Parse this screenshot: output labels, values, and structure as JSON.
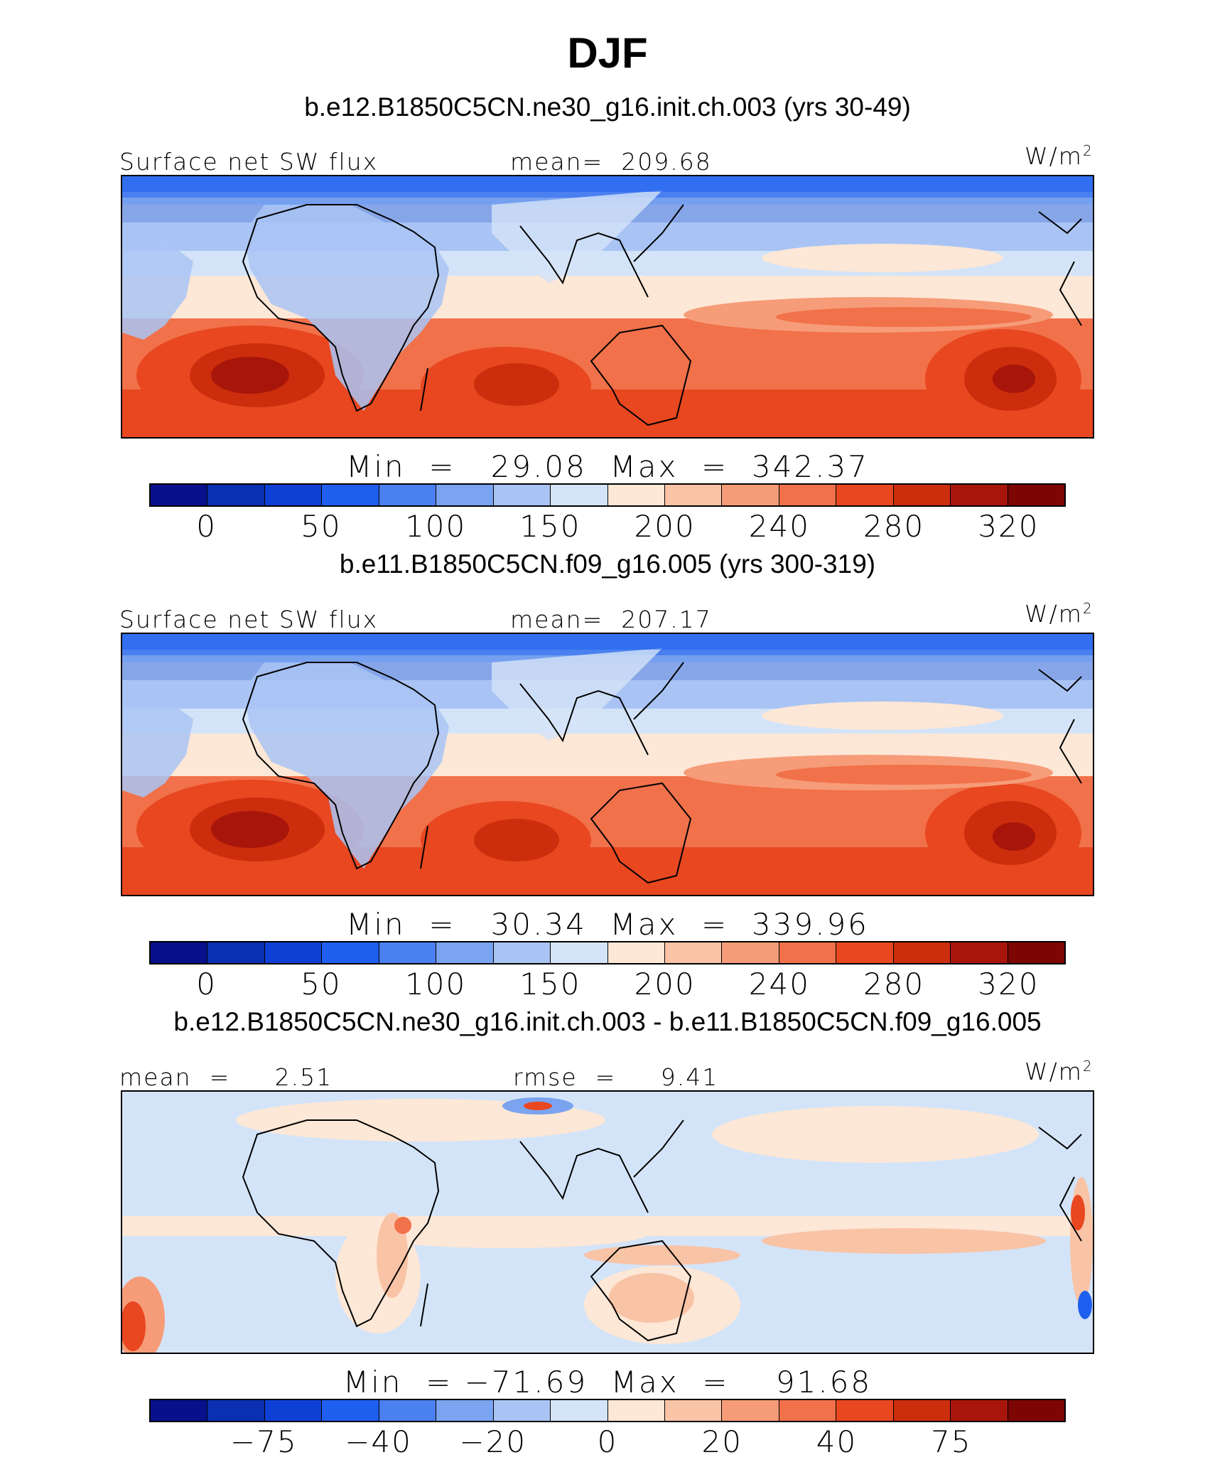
{
  "title": "DJF",
  "palette": [
    "#08108c",
    "#0a2fb0",
    "#0f40d6",
    "#1f5ff0",
    "#4a80f0",
    "#7aa3f0",
    "#a9c4f4",
    "#d4e4f8",
    "#fde7d6",
    "#f9c3a6",
    "#f69c78",
    "#f1714a",
    "#e8471f",
    "#cc2d0c",
    "#a8150a",
    "#7d0605"
  ],
  "panels": [
    {
      "case_title": "b.e12.B1850C5CN.ne30_g16.init.ch.003 (yrs 30-49)",
      "left_label": "Surface net SW flux",
      "center_label": "mean=  209.68",
      "units_label": "W/m",
      "units_power": "2",
      "minmax": "Min  =   29.08  Max  =  342.37",
      "ticks": [
        "0",
        "50",
        "100",
        "150",
        "200",
        "240",
        "280",
        "320"
      ],
      "kind": "abs"
    },
    {
      "case_title": "b.e11.B1850C5CN.f09_g16.005 (yrs 300-319)",
      "left_label": "Surface net SW flux",
      "center_label": "mean=  207.17",
      "units_label": "W/m",
      "units_power": "2",
      "minmax": "Min  =   30.34  Max  =  339.96",
      "ticks": [
        "0",
        "50",
        "100",
        "150",
        "200",
        "240",
        "280",
        "320"
      ],
      "kind": "abs"
    },
    {
      "case_title": "b.e12.B1850C5CN.ne30_g16.init.ch.003 - b.e11.B1850C5CN.f09_g16.005",
      "left_label": "mean  =     2.51",
      "center_label": "rmse  =     9.41",
      "units_label": "W/m",
      "units_power": "2",
      "minmax": "Min  = −71.69  Max  =    91.68",
      "ticks": [
        "−75",
        "−40",
        "−20",
        "0",
        "20",
        "40",
        "75"
      ],
      "kind": "diff"
    }
  ]
}
